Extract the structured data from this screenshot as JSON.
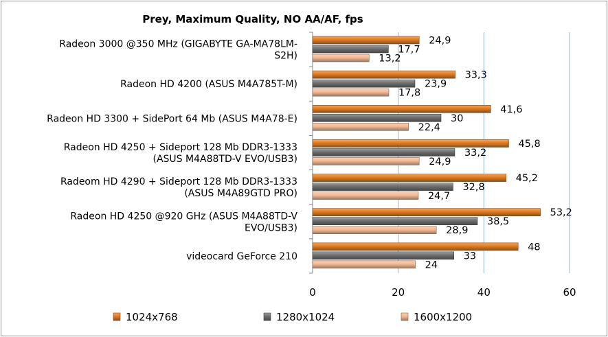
{
  "chart_data": {
    "type": "bar",
    "orientation": "horizontal",
    "title": "Prey, Maximum Quality,  NO AA/AF, fps",
    "categories": [
      [
        "Radeon 3000 @350 MHz (GIGABYTE GA-MA78LM-",
        "S2H)"
      ],
      [
        "Radeon HD 4200 (ASUS M4A785T-M)"
      ],
      [
        "Radeon HD 3300 + SidePort 64 Mb (ASUS M4A78-E)"
      ],
      [
        "Radeon HD 4250 + Sideport 128 Mb DDR3-1333",
        "(ASUS M4A88TD-V EVO/USB3)"
      ],
      [
        "Radeom HD 4290 + Sideport 128 Mb DDR3-1333",
        "(ASUS M4A89GTD PRO)"
      ],
      [
        "Radeon HD 4250 @920 GHz (ASUS M4A88TD-V",
        "EVO/USB3)"
      ],
      [
        "videocard GeForce 210"
      ]
    ],
    "series": [
      {
        "name": "1024x768",
        "color": "#e07a1f",
        "values": [
          24.9,
          33.3,
          41.6,
          45.8,
          45.2,
          53.2,
          48
        ],
        "labels": [
          "24,9",
          "33,3",
          "41,6",
          "45,8",
          "45,2",
          "53,2",
          "48"
        ]
      },
      {
        "name": "1280x1024",
        "color": "#6e6e6e",
        "values": [
          17.7,
          23.9,
          30,
          33.2,
          32.8,
          38.5,
          33
        ],
        "labels": [
          "17,7",
          "23,9",
          "30",
          "33,2",
          "32,8",
          "38,5",
          "33"
        ]
      },
      {
        "name": "1600x1200",
        "color": "#f3b995",
        "values": [
          13.2,
          17.8,
          22.4,
          24.9,
          24.7,
          28.9,
          24
        ],
        "labels": [
          "13,2",
          "17,8",
          "22,4",
          "24,9",
          "24,7",
          "28,9",
          "24"
        ]
      }
    ],
    "xlim": [
      0,
      60
    ],
    "xticks": [
      "0",
      "20",
      "40",
      "60"
    ],
    "grid": true,
    "legend_position": "bottom"
  }
}
